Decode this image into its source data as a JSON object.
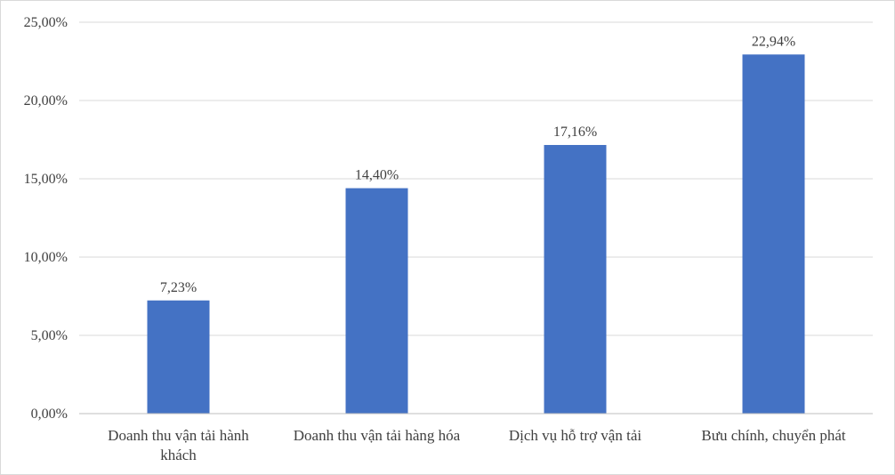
{
  "chart_data": {
    "type": "bar",
    "title": "",
    "xlabel": "",
    "ylabel": "",
    "categories": [
      [
        "Doanh thu vận tải hành",
        "khách"
      ],
      [
        "Doanh thu vận tải hàng hóa"
      ],
      [
        "Dịch vụ hỗ trợ vận tải"
      ],
      [
        "Bưu chính, chuyển phát"
      ]
    ],
    "values": [
      7.23,
      14.4,
      17.16,
      22.94
    ],
    "data_labels": [
      "7,23%",
      "14,40%",
      "17,16%",
      "22,94%"
    ],
    "ylim": [
      0,
      25
    ],
    "yticks": [
      0,
      5,
      10,
      15,
      20,
      25
    ],
    "ytick_labels": [
      "0,00%",
      "5,00%",
      "10,00%",
      "15,00%",
      "20,00%",
      "25,00%"
    ],
    "grid": true,
    "legend": "none",
    "colors": {
      "bar": "#4472C4",
      "grid": "#d9d9d9",
      "axis": "#bfbfbf",
      "text": "#404040"
    }
  }
}
